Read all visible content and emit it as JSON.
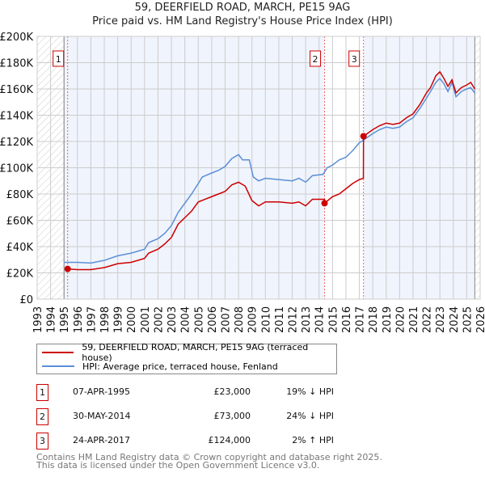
{
  "title": "59, DEERFIELD ROAD, MARCH, PE15 9AG",
  "subtitle": "Price paid vs. HM Land Registry's House Price Index (HPI)",
  "chart_data": {
    "type": "line",
    "xlim": [
      1993,
      2026
    ],
    "ylim": [
      0,
      200000
    ],
    "x_ticks": [
      "1993",
      "1994",
      "1995",
      "1996",
      "1997",
      "1998",
      "1999",
      "2000",
      "2001",
      "2002",
      "2003",
      "2004",
      "2005",
      "2006",
      "2007",
      "2008",
      "2009",
      "2010",
      "2011",
      "2012",
      "2013",
      "2014",
      "2015",
      "2016",
      "2017",
      "2018",
      "2019",
      "2020",
      "2021",
      "2022",
      "2023",
      "2024",
      "2025",
      "2026"
    ],
    "y_ticks": [
      {
        "v": 0,
        "label": "£0"
      },
      {
        "v": 20000,
        "label": "£20K"
      },
      {
        "v": 40000,
        "label": "£40K"
      },
      {
        "v": 60000,
        "label": "£60K"
      },
      {
        "v": 80000,
        "label": "£80K"
      },
      {
        "v": 100000,
        "label": "£100K"
      },
      {
        "v": 120000,
        "label": "£120K"
      },
      {
        "v": 140000,
        "label": "£140K"
      },
      {
        "v": 160000,
        "label": "£160K"
      },
      {
        "v": 180000,
        "label": "£180K"
      },
      {
        "v": 200000,
        "label": "£200K"
      }
    ],
    "series": [
      {
        "name": "59, DEERFIELD ROAD, MARCH, PE15 9AG (terraced house)",
        "color": "#cc0000",
        "x": [
          1995.27,
          1996,
          1997,
          1998,
          1999,
          2000,
          2001,
          2001.3,
          2002,
          2002.5,
          2003,
          2003.5,
          2004,
          2004.5,
          2005,
          2006,
          2006.5,
          2007,
          2007.5,
          2008,
          2008.5,
          2009,
          2009.5,
          2010,
          2011,
          2012,
          2012.5,
          2013,
          2013.5,
          2014.4,
          2014.41,
          2015,
          2015.5,
          2016,
          2016.5,
          2017,
          2017.3,
          2017.31,
          2018,
          2018.5,
          2019,
          2019.5,
          2020,
          2020.5,
          2021,
          2021.5,
          2022,
          2022.3,
          2022.7,
          2023,
          2023.3,
          2023.6,
          2023.9,
          2024.2,
          2024.6,
          2025,
          2025.3,
          2025.6
        ],
        "y": [
          23000,
          22500,
          22500,
          24000,
          27000,
          28000,
          31000,
          35000,
          38000,
          42000,
          47000,
          57000,
          62000,
          67000,
          74000,
          78000,
          80000,
          82000,
          87000,
          89000,
          86000,
          75000,
          71000,
          74000,
          74000,
          73000,
          74000,
          71000,
          76000,
          76000,
          73000,
          78000,
          80000,
          84000,
          88000,
          91000,
          92000,
          124000,
          129000,
          132000,
          134000,
          133000,
          134000,
          138000,
          141000,
          148000,
          157000,
          161000,
          170000,
          173000,
          168000,
          162000,
          167000,
          157000,
          161000,
          163000,
          165000,
          160000
        ]
      },
      {
        "name": "HPI: Average price, terraced house, Fenland",
        "color": "#5b8fd6",
        "x": [
          1995,
          1996,
          1997,
          1998,
          1999,
          2000,
          2001,
          2001.3,
          2002,
          2002.5,
          2003,
          2003.5,
          2004,
          2004.5,
          2005,
          2005.3,
          2006,
          2006.5,
          2007,
          2007.5,
          2008,
          2008.3,
          2008.8,
          2009.1,
          2009.5,
          2010,
          2011,
          2012,
          2012.5,
          2013,
          2013.5,
          2014.3,
          2014.6,
          2015,
          2015.5,
          2016,
          2016.5,
          2017,
          2017.3,
          2018,
          2018.5,
          2019,
          2019.5,
          2020,
          2020.5,
          2021,
          2021.5,
          2022,
          2022.3,
          2022.7,
          2023,
          2023.3,
          2023.6,
          2023.9,
          2024.2,
          2024.6,
          2025,
          2025.3,
          2025.6
        ],
        "y": [
          28000,
          28000,
          27500,
          29500,
          33000,
          35000,
          38000,
          43000,
          46000,
          50000,
          56000,
          66000,
          73000,
          80000,
          88000,
          93000,
          96000,
          98000,
          101000,
          107000,
          110000,
          106000,
          106000,
          93000,
          90000,
          92000,
          91000,
          90000,
          92000,
          89000,
          94000,
          95000,
          100000,
          102000,
          106000,
          108000,
          113000,
          119000,
          121000,
          126000,
          129000,
          131000,
          130000,
          131000,
          135000,
          138000,
          145000,
          153000,
          158000,
          165000,
          168000,
          164000,
          158000,
          165000,
          154000,
          158000,
          160000,
          161000,
          157000
        ]
      }
    ],
    "sales": [
      {
        "n": "1",
        "x": 1995.27,
        "y": 23000
      },
      {
        "n": "2",
        "x": 2014.41,
        "y": 73000
      },
      {
        "n": "3",
        "x": 2017.31,
        "y": 124000
      }
    ],
    "legend": "below"
  },
  "transactions": [
    {
      "n": "1",
      "date": "07-APR-1995",
      "price": "£23,000",
      "hpi": "19% ↓ HPI"
    },
    {
      "n": "2",
      "date": "30-MAY-2014",
      "price": "£73,000",
      "hpi": "24% ↓ HPI"
    },
    {
      "n": "3",
      "date": "24-APR-2017",
      "price": "£124,000",
      "hpi": "2% ↑ HPI"
    }
  ],
  "footer": [
    "Contains HM Land Registry data © Crown copyright and database right 2025.",
    "This data is licensed under the Open Government Licence v3.0."
  ]
}
